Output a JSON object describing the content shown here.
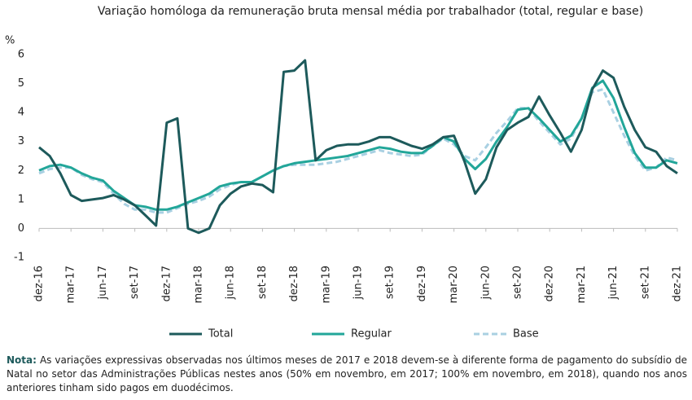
{
  "chart_data": {
    "type": "line",
    "title": "Variação homóloga da remuneração bruta mensal média por trabalhador (total, regular e base)",
    "y_label": "%",
    "categories": [
      "dez-16",
      null,
      null,
      "mar-17",
      null,
      null,
      "jun-17",
      null,
      null,
      "set-17",
      null,
      null,
      "dez-17",
      null,
      null,
      "mar-18",
      null,
      null,
      "jun-18",
      null,
      null,
      "set-18",
      null,
      null,
      "dez-18",
      null,
      null,
      "mar-19",
      null,
      null,
      "jun-19",
      null,
      null,
      "set-19",
      null,
      null,
      "dez-19",
      null,
      null,
      "mar-20",
      null,
      null,
      "jun-20",
      null,
      null,
      "set-20",
      null,
      null,
      "dez-20",
      null,
      null,
      "mar-21",
      null,
      null,
      "jun-21",
      null,
      null,
      "set-21",
      null,
      null,
      "dez-21"
    ],
    "series": [
      {
        "name": "Total",
        "color": "#1d5a5b",
        "line_style": "solid",
        "values": [
          2.8,
          2.5,
          1.9,
          1.15,
          0.95,
          1.0,
          1.05,
          1.15,
          1.0,
          0.8,
          0.45,
          0.1,
          3.65,
          3.8,
          0.0,
          -0.15,
          0.0,
          0.8,
          1.2,
          1.45,
          1.55,
          1.5,
          1.25,
          5.4,
          5.45,
          5.8,
          2.35,
          2.7,
          2.85,
          2.9,
          2.9,
          3.0,
          3.15,
          3.15,
          3.0,
          2.85,
          2.75,
          2.9,
          3.15,
          3.2,
          2.3,
          1.2,
          1.7,
          2.8,
          3.4,
          3.65,
          3.85,
          4.55,
          3.9,
          3.3,
          2.65,
          3.4,
          4.8,
          5.45,
          5.2,
          4.2,
          3.4,
          2.8,
          2.65,
          2.15,
          1.9
        ]
      },
      {
        "name": "Regular",
        "color": "#22a699",
        "line_style": "solid",
        "values": [
          2.0,
          2.15,
          2.2,
          2.1,
          1.9,
          1.75,
          1.65,
          1.3,
          1.05,
          0.8,
          0.75,
          0.65,
          0.65,
          0.75,
          0.9,
          1.05,
          1.2,
          1.45,
          1.55,
          1.6,
          1.6,
          1.8,
          2.0,
          2.15,
          2.25,
          2.3,
          2.35,
          2.4,
          2.45,
          2.5,
          2.6,
          2.7,
          2.8,
          2.75,
          2.65,
          2.6,
          2.6,
          2.85,
          3.15,
          3.0,
          2.4,
          2.05,
          2.4,
          3.0,
          3.5,
          4.1,
          4.15,
          3.8,
          3.4,
          3.0,
          3.2,
          3.8,
          4.85,
          5.1,
          4.5,
          3.5,
          2.6,
          2.1,
          2.1,
          2.35,
          2.25
        ]
      },
      {
        "name": "Base",
        "color": "#a9d0e2",
        "line_style": "dashed",
        "values": [
          1.9,
          2.05,
          2.1,
          2.1,
          1.85,
          1.7,
          1.6,
          1.2,
          0.85,
          0.65,
          0.65,
          0.55,
          0.55,
          0.7,
          0.85,
          0.95,
          1.1,
          1.35,
          1.5,
          1.6,
          1.6,
          1.8,
          2.0,
          2.15,
          2.2,
          2.2,
          2.2,
          2.25,
          2.3,
          2.4,
          2.5,
          2.6,
          2.7,
          2.6,
          2.55,
          2.5,
          2.55,
          2.85,
          3.1,
          2.9,
          2.5,
          2.35,
          2.8,
          3.3,
          3.7,
          4.15,
          4.15,
          3.7,
          3.3,
          2.9,
          3.1,
          3.8,
          4.7,
          4.8,
          4.0,
          3.2,
          2.5,
          2.0,
          2.1,
          2.45,
          2.35
        ]
      }
    ],
    "ylim": [
      -1,
      6
    ],
    "yticks": [
      -1,
      0,
      1,
      2,
      3,
      4,
      5,
      6
    ],
    "grid": false,
    "legend": "bottom"
  },
  "note": {
    "label": "Nota:",
    "text": "As variações expressivas observadas nos últimos meses de 2017 e 2018 devem-se à diferente forma de pagamento do subsídio de Natal no setor das Administrações Públicas nestes anos (50% em novembro, em 2017; 100% em novembro, em 2018), quando nos anos anteriores tinham sido pagos em duodécimos."
  }
}
